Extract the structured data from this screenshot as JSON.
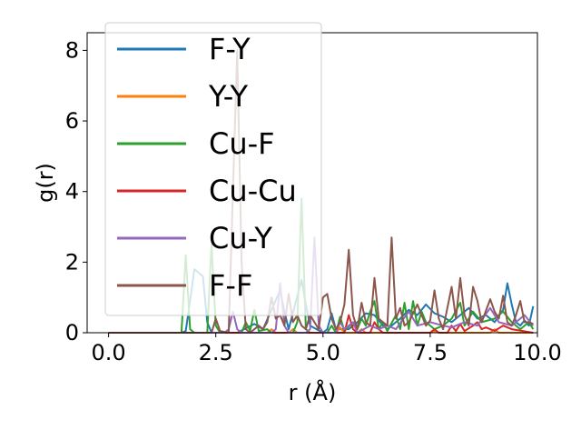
{
  "chart_data": {
    "type": "line",
    "title": "",
    "xlabel": "r (Å)",
    "ylabel": "g(r)",
    "xlim": [
      -0.5,
      10.0
    ],
    "ylim": [
      0,
      8.5
    ],
    "grid": false,
    "legend_position": "top-left",
    "x_ticks": [
      {
        "value": 0.0,
        "label": "0.0"
      },
      {
        "value": 2.5,
        "label": "2.5"
      },
      {
        "value": 5.0,
        "label": "5.0"
      },
      {
        "value": 7.5,
        "label": "7.5"
      },
      {
        "value": 10.0,
        "label": "10.0"
      }
    ],
    "y_ticks": [
      {
        "value": 0,
        "label": "0"
      },
      {
        "value": 2,
        "label": "2"
      },
      {
        "value": 4,
        "label": "4"
      },
      {
        "value": 6,
        "label": "6"
      },
      {
        "value": 8,
        "label": "8"
      }
    ],
    "series": [
      {
        "name": "F-Y",
        "color": "#1f77b4",
        "points": [
          [
            0,
            0
          ],
          [
            1.7,
            0
          ],
          [
            1.8,
            0.05
          ],
          [
            1.9,
            0.9
          ],
          [
            2.0,
            1.8
          ],
          [
            2.1,
            1.7
          ],
          [
            2.2,
            1.6
          ],
          [
            2.3,
            0.3
          ],
          [
            2.4,
            0
          ],
          [
            3.0,
            0
          ],
          [
            3.4,
            0.25
          ],
          [
            3.6,
            0.1
          ],
          [
            4.0,
            1.2
          ],
          [
            4.1,
            0.6
          ],
          [
            4.2,
            0.1
          ],
          [
            4.5,
            1.5
          ],
          [
            4.6,
            0.8
          ],
          [
            4.7,
            0.2
          ],
          [
            5.0,
            0
          ],
          [
            5.1,
            0.1
          ],
          [
            5.2,
            0.55
          ],
          [
            5.3,
            0.1
          ],
          [
            5.6,
            0.1
          ],
          [
            5.8,
            0.3
          ],
          [
            6.0,
            0.55
          ],
          [
            6.2,
            0.5
          ],
          [
            6.4,
            0.2
          ],
          [
            6.5,
            0.1
          ],
          [
            6.8,
            0.4
          ],
          [
            7.0,
            0.65
          ],
          [
            7.2,
            0.5
          ],
          [
            7.4,
            0.8
          ],
          [
            7.6,
            0.55
          ],
          [
            7.8,
            0.45
          ],
          [
            8.0,
            0.3
          ],
          [
            8.2,
            0.5
          ],
          [
            8.4,
            0.7
          ],
          [
            8.6,
            0.4
          ],
          [
            8.8,
            0.5
          ],
          [
            9.0,
            0.3
          ],
          [
            9.2,
            0.65
          ],
          [
            9.3,
            1.4
          ],
          [
            9.4,
            0.8
          ],
          [
            9.5,
            0.3
          ],
          [
            9.6,
            0.2
          ],
          [
            9.7,
            0.35
          ],
          [
            9.8,
            0.2
          ],
          [
            9.9,
            0.75
          ]
        ]
      },
      {
        "name": "Y-Y",
        "color": "#ff7f0e",
        "points": [
          [
            0,
            0
          ],
          [
            3.7,
            0
          ],
          [
            3.8,
            0.1
          ],
          [
            3.9,
            0
          ],
          [
            4.2,
            0
          ],
          [
            4.3,
            0.1
          ],
          [
            4.4,
            0
          ],
          [
            5.3,
            0
          ],
          [
            5.4,
            0.15
          ],
          [
            5.5,
            0
          ],
          [
            5.8,
            0
          ],
          [
            5.9,
            0.1
          ],
          [
            6.0,
            0
          ],
          [
            7.5,
            0
          ],
          [
            7.6,
            0.05
          ],
          [
            7.7,
            0
          ],
          [
            8.9,
            0
          ],
          [
            9.0,
            0.1
          ],
          [
            9.1,
            0
          ],
          [
            9.9,
            0
          ]
        ]
      },
      {
        "name": "Cu-F",
        "color": "#2ca02c",
        "points": [
          [
            0,
            0
          ],
          [
            1.7,
            0
          ],
          [
            1.8,
            2.2
          ],
          [
            1.9,
            0.1
          ],
          [
            2.0,
            0
          ],
          [
            2.3,
            0
          ],
          [
            2.4,
            2.5
          ],
          [
            2.5,
            0.2
          ],
          [
            2.6,
            0
          ],
          [
            3.1,
            0
          ],
          [
            3.2,
            0.3
          ],
          [
            3.3,
            0.05
          ],
          [
            3.4,
            0.65
          ],
          [
            3.5,
            0.05
          ],
          [
            3.7,
            0.1
          ],
          [
            3.8,
            0
          ],
          [
            4.3,
            0
          ],
          [
            4.4,
            0.3
          ],
          [
            4.5,
            3.8
          ],
          [
            4.6,
            0.1
          ],
          [
            4.7,
            0
          ],
          [
            5.1,
            0
          ],
          [
            5.2,
            0.2
          ],
          [
            5.3,
            0
          ],
          [
            5.4,
            0.45
          ],
          [
            5.5,
            0.05
          ],
          [
            5.7,
            0.3
          ],
          [
            5.8,
            0.1
          ],
          [
            5.9,
            0.4
          ],
          [
            6.0,
            0.2
          ],
          [
            6.1,
            0.6
          ],
          [
            6.2,
            0.9
          ],
          [
            6.3,
            0.1
          ],
          [
            6.4,
            0.3
          ],
          [
            6.5,
            0.05
          ],
          [
            6.7,
            0.5
          ],
          [
            6.8,
            0.1
          ],
          [
            6.9,
            0.85
          ],
          [
            7.0,
            0.1
          ],
          [
            7.1,
            0.9
          ],
          [
            7.2,
            0.2
          ],
          [
            7.3,
            0.6
          ],
          [
            7.4,
            0.3
          ],
          [
            7.6,
            0.1
          ],
          [
            7.8,
            0.2
          ],
          [
            8.0,
            0.4
          ],
          [
            8.2,
            0.85
          ],
          [
            8.3,
            0.2
          ],
          [
            8.5,
            0.6
          ],
          [
            8.7,
            0.3
          ],
          [
            9.0,
            0.4
          ],
          [
            9.2,
            0.6
          ],
          [
            9.4,
            0.3
          ],
          [
            9.6,
            0.1
          ],
          [
            9.8,
            0.3
          ],
          [
            9.9,
            0.1
          ]
        ]
      },
      {
        "name": "Cu-Cu",
        "color": "#d62728",
        "points": [
          [
            0,
            0
          ],
          [
            5.5,
            0
          ],
          [
            5.6,
            0.5
          ],
          [
            5.7,
            0.1
          ],
          [
            5.8,
            0
          ],
          [
            6.1,
            0
          ],
          [
            6.2,
            0.3
          ],
          [
            6.3,
            0.1
          ],
          [
            6.4,
            0
          ],
          [
            7.5,
            0
          ],
          [
            7.6,
            0.1
          ],
          [
            7.7,
            0
          ],
          [
            7.9,
            0
          ],
          [
            8.0,
            0.2
          ],
          [
            8.1,
            0.05
          ],
          [
            8.2,
            0.25
          ],
          [
            8.3,
            0.05
          ],
          [
            8.5,
            0.2
          ],
          [
            8.6,
            0.3
          ],
          [
            8.7,
            0.1
          ],
          [
            8.8,
            0.15
          ],
          [
            9.0,
            0.05
          ],
          [
            9.2,
            0.2
          ],
          [
            9.4,
            0.1
          ],
          [
            9.9,
            0
          ]
        ]
      },
      {
        "name": "Cu-Y",
        "color": "#9467bd",
        "points": [
          [
            0,
            0
          ],
          [
            2.7,
            0
          ],
          [
            2.8,
            0.1
          ],
          [
            2.9,
            0.6
          ],
          [
            3.0,
            0.1
          ],
          [
            3.1,
            0
          ],
          [
            3.8,
            0
          ],
          [
            3.9,
            0.1
          ],
          [
            4.0,
            1.4
          ],
          [
            4.1,
            0.2
          ],
          [
            4.2,
            0
          ],
          [
            4.6,
            0
          ],
          [
            4.7,
            0.1
          ],
          [
            4.8,
            2.7
          ],
          [
            4.9,
            0.2
          ],
          [
            5.0,
            0
          ],
          [
            5.3,
            0
          ],
          [
            5.4,
            0.3
          ],
          [
            5.5,
            0.1
          ],
          [
            5.7,
            0.3
          ],
          [
            5.8,
            0
          ],
          [
            6.1,
            0.2
          ],
          [
            6.3,
            0.1
          ],
          [
            6.5,
            0.2
          ],
          [
            6.7,
            0.1
          ],
          [
            7.0,
            0.6
          ],
          [
            7.2,
            0.2
          ],
          [
            7.5,
            0.3
          ],
          [
            7.8,
            0.2
          ],
          [
            8.0,
            0.15
          ],
          [
            8.3,
            0.3
          ],
          [
            8.6,
            0.2
          ],
          [
            8.9,
            0.7
          ],
          [
            9.1,
            0.3
          ],
          [
            9.4,
            0.2
          ],
          [
            9.7,
            0.5
          ],
          [
            9.9,
            0.2
          ]
        ]
      },
      {
        "name": "F-F",
        "color": "#8c564b",
        "points": [
          [
            0,
            0
          ],
          [
            2.4,
            0
          ],
          [
            2.5,
            0.4
          ],
          [
            2.6,
            0.05
          ],
          [
            2.8,
            0
          ],
          [
            2.9,
            4.0
          ],
          [
            3.0,
            8.0
          ],
          [
            3.1,
            2.0
          ],
          [
            3.2,
            0.1
          ],
          [
            3.3,
            0
          ],
          [
            3.5,
            0.2
          ],
          [
            3.6,
            0.1
          ],
          [
            3.7,
            0.3
          ],
          [
            3.8,
            1.0
          ],
          [
            3.9,
            0.4
          ],
          [
            4.0,
            0.5
          ],
          [
            4.1,
            0.2
          ],
          [
            4.2,
            1.1
          ],
          [
            4.3,
            0.3
          ],
          [
            4.4,
            0.5
          ],
          [
            4.5,
            0.2
          ],
          [
            4.6,
            0.1
          ],
          [
            4.7,
            0.5
          ],
          [
            4.8,
            0.3
          ],
          [
            4.9,
            0.1
          ],
          [
            5.0,
            1.0
          ],
          [
            5.1,
            1.1
          ],
          [
            5.2,
            0.4
          ],
          [
            5.3,
            0.1
          ],
          [
            5.4,
            0.3
          ],
          [
            5.5,
            0.8
          ],
          [
            5.6,
            2.35
          ],
          [
            5.7,
            0.5
          ],
          [
            5.8,
            0.1
          ],
          [
            5.9,
            0.85
          ],
          [
            6.0,
            0.3
          ],
          [
            6.1,
            0.2
          ],
          [
            6.2,
            1.55
          ],
          [
            6.3,
            0.4
          ],
          [
            6.4,
            0.3
          ],
          [
            6.5,
            0.2
          ],
          [
            6.6,
            2.7
          ],
          [
            6.7,
            0.4
          ],
          [
            6.8,
            0.7
          ],
          [
            6.9,
            0.2
          ],
          [
            7.0,
            0.3
          ],
          [
            7.2,
            0.8
          ],
          [
            7.3,
            0.5
          ],
          [
            7.4,
            0.2
          ],
          [
            7.5,
            0.35
          ],
          [
            7.6,
            1.2
          ],
          [
            7.7,
            0.4
          ],
          [
            7.8,
            0.1
          ],
          [
            8.0,
            1.3
          ],
          [
            8.1,
            0.4
          ],
          [
            8.2,
            1.55
          ],
          [
            8.3,
            0.5
          ],
          [
            8.4,
            0.2
          ],
          [
            8.5,
            1.3
          ],
          [
            8.6,
            0.9
          ],
          [
            8.7,
            0.3
          ],
          [
            8.9,
            0.95
          ],
          [
            9.0,
            0.6
          ],
          [
            9.1,
            0.4
          ],
          [
            9.2,
            1.05
          ],
          [
            9.3,
            0.3
          ],
          [
            9.4,
            0.2
          ],
          [
            9.5,
            0.5
          ],
          [
            9.6,
            0.9
          ],
          [
            9.7,
            0.3
          ],
          [
            9.8,
            0.3
          ],
          [
            9.9,
            0.25
          ]
        ]
      }
    ]
  }
}
